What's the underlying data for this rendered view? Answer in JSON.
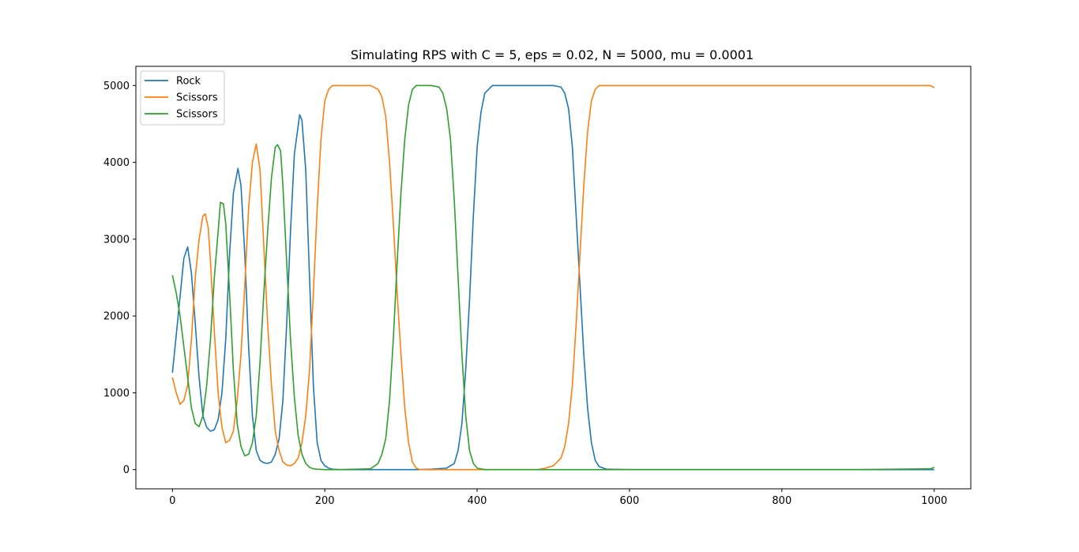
{
  "chart_data": {
    "type": "line",
    "title": "Simulating RPS with C = 5, eps = 0.02, N = 5000, mu = 0.0001",
    "xlabel": "",
    "ylabel": "",
    "xlim": [
      -48,
      1048
    ],
    "ylim": [
      -250,
      5250
    ],
    "xticks": [
      0,
      200,
      400,
      600,
      800,
      1000
    ],
    "yticks": [
      0,
      1000,
      2000,
      3000,
      4000,
      5000
    ],
    "grid": false,
    "legend_position": "upper-left",
    "series": [
      {
        "name": "Rock",
        "color": "#1f77b4",
        "x": [
          0,
          5,
          10,
          15,
          20,
          25,
          30,
          35,
          40,
          45,
          50,
          55,
          60,
          65,
          70,
          75,
          80,
          86,
          90,
          95,
          100,
          105,
          110,
          115,
          120,
          125,
          130,
          135,
          140,
          145,
          150,
          155,
          160,
          167,
          170,
          175,
          180,
          185,
          190,
          195,
          200,
          205,
          210,
          220,
          240,
          260,
          280,
          300,
          320,
          340,
          360,
          370,
          375,
          380,
          385,
          390,
          395,
          400,
          405,
          410,
          420,
          440,
          460,
          480,
          500,
          510,
          515,
          520,
          525,
          530,
          535,
          540,
          545,
          550,
          555,
          560,
          570,
          600,
          700,
          800,
          900,
          1000
        ],
        "y": [
          1260,
          1750,
          2250,
          2750,
          2900,
          2550,
          1900,
          1200,
          700,
          550,
          500,
          520,
          650,
          1000,
          1700,
          2800,
          3600,
          3920,
          3700,
          2800,
          1600,
          700,
          250,
          120,
          90,
          80,
          100,
          200,
          400,
          900,
          1900,
          3100,
          4100,
          4620,
          4550,
          3900,
          2500,
          1100,
          350,
          120,
          50,
          20,
          5,
          0,
          0,
          0,
          0,
          0,
          0,
          5,
          20,
          80,
          250,
          600,
          1300,
          2200,
          3300,
          4200,
          4650,
          4900,
          5000,
          5000,
          5000,
          5000,
          5000,
          4980,
          4900,
          4700,
          4200,
          3300,
          2400,
          1500,
          800,
          350,
          120,
          40,
          5,
          0,
          0,
          0,
          0,
          0
        ]
      },
      {
        "name": "Scissors",
        "color": "#ff7f0e",
        "x": [
          0,
          5,
          10,
          15,
          20,
          25,
          30,
          35,
          40,
          43,
          47,
          50,
          55,
          60,
          65,
          70,
          75,
          80,
          85,
          90,
          95,
          100,
          105,
          110,
          115,
          120,
          125,
          130,
          135,
          140,
          145,
          150,
          155,
          160,
          165,
          170,
          175,
          180,
          185,
          190,
          195,
          200,
          205,
          210,
          220,
          260,
          270,
          275,
          280,
          285,
          290,
          295,
          300,
          305,
          310,
          315,
          320,
          325,
          330,
          350,
          400,
          450,
          480,
          490,
          500,
          510,
          515,
          520,
          525,
          530,
          535,
          540,
          545,
          550,
          555,
          560,
          570,
          600,
          700,
          800,
          900,
          995,
          1000
        ],
        "y": [
          1200,
          1000,
          850,
          900,
          1100,
          1700,
          2500,
          3000,
          3300,
          3330,
          3150,
          2700,
          1800,
          1000,
          550,
          350,
          380,
          500,
          900,
          1500,
          2400,
          3400,
          4000,
          4240,
          3900,
          2900,
          1900,
          1100,
          500,
          250,
          100,
          60,
          50,
          80,
          150,
          350,
          700,
          1300,
          2300,
          3400,
          4300,
          4800,
          4950,
          5000,
          5000,
          5000,
          4950,
          4850,
          4600,
          4000,
          3200,
          2300,
          1500,
          800,
          350,
          100,
          20,
          0,
          0,
          0,
          0,
          0,
          0,
          20,
          50,
          150,
          300,
          600,
          1100,
          1900,
          2800,
          3700,
          4400,
          4800,
          4950,
          5000,
          5000,
          5000,
          5000,
          5000,
          5000,
          5000,
          4970
        ]
      },
      {
        "name": "Scissors",
        "color": "#2ca02c",
        "x": [
          0,
          5,
          10,
          15,
          20,
          25,
          30,
          35,
          40,
          45,
          50,
          55,
          60,
          63,
          67,
          70,
          75,
          80,
          85,
          90,
          95,
          100,
          105,
          110,
          115,
          120,
          125,
          130,
          135,
          138,
          142,
          145,
          150,
          155,
          160,
          165,
          170,
          175,
          180,
          185,
          190,
          200,
          220,
          260,
          270,
          275,
          280,
          285,
          290,
          295,
          300,
          305,
          310,
          315,
          320,
          330,
          340,
          350,
          355,
          360,
          365,
          370,
          375,
          380,
          385,
          390,
          395,
          400,
          410,
          440,
          500,
          600,
          700,
          800,
          900,
          995,
          1000
        ],
        "y": [
          2530,
          2300,
          2000,
          1600,
          1200,
          800,
          600,
          560,
          700,
          1100,
          1700,
          2500,
          3100,
          3480,
          3460,
          3200,
          2300,
          1300,
          600,
          300,
          180,
          200,
          350,
          700,
          1400,
          2300,
          3100,
          3800,
          4200,
          4230,
          4150,
          3700,
          2700,
          1700,
          950,
          450,
          200,
          80,
          30,
          10,
          5,
          0,
          0,
          10,
          80,
          200,
          400,
          900,
          1700,
          2700,
          3600,
          4300,
          4750,
          4950,
          5000,
          5000,
          5000,
          4980,
          4900,
          4700,
          4300,
          3500,
          2500,
          1500,
          700,
          250,
          80,
          20,
          0,
          0,
          0,
          0,
          0,
          0,
          0,
          10,
          30
        ]
      }
    ]
  }
}
